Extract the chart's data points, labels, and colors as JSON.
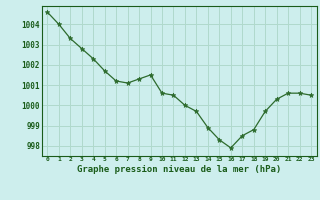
{
  "x": [
    0,
    1,
    2,
    3,
    4,
    5,
    6,
    7,
    8,
    9,
    10,
    11,
    12,
    13,
    14,
    15,
    16,
    17,
    18,
    19,
    20,
    21,
    22,
    23
  ],
  "y": [
    1004.6,
    1004.0,
    1003.3,
    1002.8,
    1002.3,
    1001.7,
    1001.2,
    1001.1,
    1001.3,
    1001.5,
    1000.6,
    1000.5,
    1000.0,
    999.7,
    998.9,
    998.3,
    997.9,
    998.5,
    998.8,
    999.7,
    1000.3,
    1000.6,
    1000.6,
    1000.5
  ],
  "line_color": "#2d6b2d",
  "marker_color": "#2d6b2d",
  "bg_color": "#cdeeed",
  "grid_color": "#b0d9cc",
  "xlabel": "Graphe pression niveau de la mer (hPa)",
  "xlabel_color": "#1a5c1a",
  "tick_color": "#1a5c1a",
  "ylim": [
    997.5,
    1004.9
  ],
  "yticks": [
    998,
    999,
    1000,
    1001,
    1002,
    1003,
    1004
  ],
  "xticks": [
    0,
    1,
    2,
    3,
    4,
    5,
    6,
    7,
    8,
    9,
    10,
    11,
    12,
    13,
    14,
    15,
    16,
    17,
    18,
    19,
    20,
    21,
    22,
    23
  ]
}
